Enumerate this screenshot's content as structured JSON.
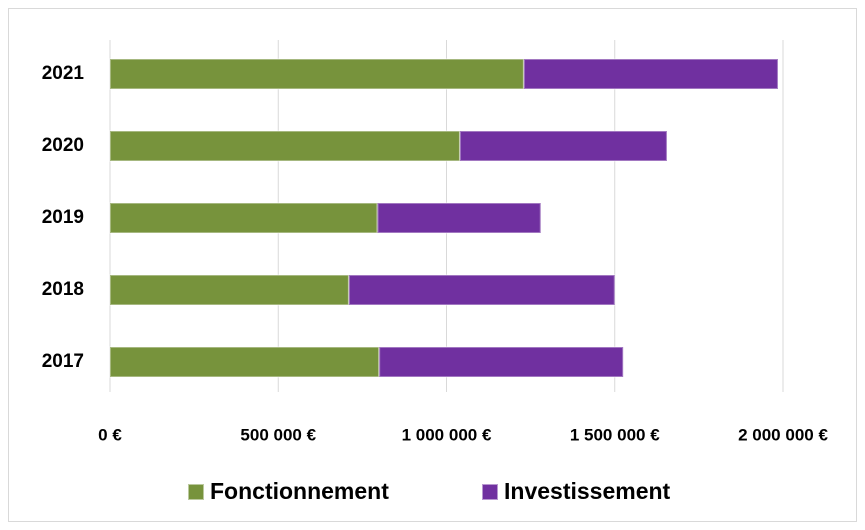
{
  "chart_data": {
    "type": "stacked_barh",
    "categories": [
      "2017",
      "2018",
      "2019",
      "2020",
      "2021"
    ],
    "series": [
      {
        "name": "Fonctionnement",
        "color": "#77933c",
        "values": [
          800000,
          710000,
          795000,
          1040000,
          1230000
        ]
      },
      {
        "name": "Investissement",
        "color": "#7030a0",
        "values": [
          725000,
          790000,
          485000,
          615000,
          755000
        ]
      }
    ],
    "xlim": [
      0,
      2000000
    ],
    "xticks": [
      {
        "value": 0,
        "label": "0 €"
      },
      {
        "value": 500000,
        "label": "500 000 €"
      },
      {
        "value": 1000000,
        "label": "1 000 000 €"
      },
      {
        "value": 1500000,
        "label": "1 500 000 €"
      },
      {
        "value": 2000000,
        "label": "2 000 000 €"
      }
    ],
    "grid": true,
    "legend": "bottom"
  }
}
